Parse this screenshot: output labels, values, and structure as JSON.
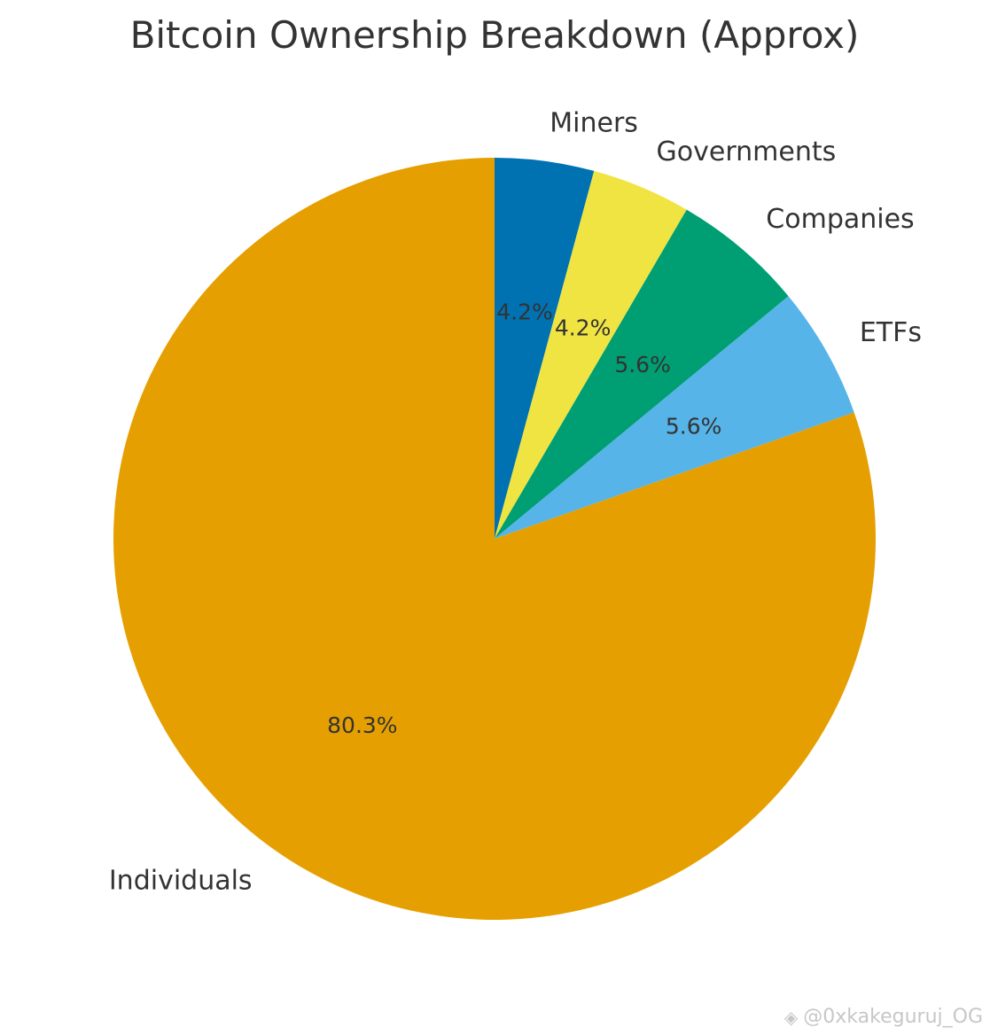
{
  "chart_data": {
    "type": "pie",
    "title": "Bitcoin Ownership Breakdown (Approx)",
    "start_angle_deg": 90,
    "direction": "clockwise",
    "slices": [
      {
        "label": "Miners",
        "value": 4.2,
        "pct_label": "4.2%",
        "color": "#0072B2"
      },
      {
        "label": "Governments",
        "value": 4.2,
        "pct_label": "4.2%",
        "color": "#F0E442"
      },
      {
        "label": "Companies",
        "value": 5.6,
        "pct_label": "5.6%",
        "color": "#009E73"
      },
      {
        "label": "ETFs",
        "value": 5.6,
        "pct_label": "5.6%",
        "color": "#56B4E9"
      },
      {
        "label": "Individuals",
        "value": 80.3,
        "pct_label": "80.3%",
        "color": "#E69F00"
      }
    ]
  },
  "watermark": {
    "icon": "binance-diamond-icon",
    "text": "@0xkakeguruj_OG"
  }
}
